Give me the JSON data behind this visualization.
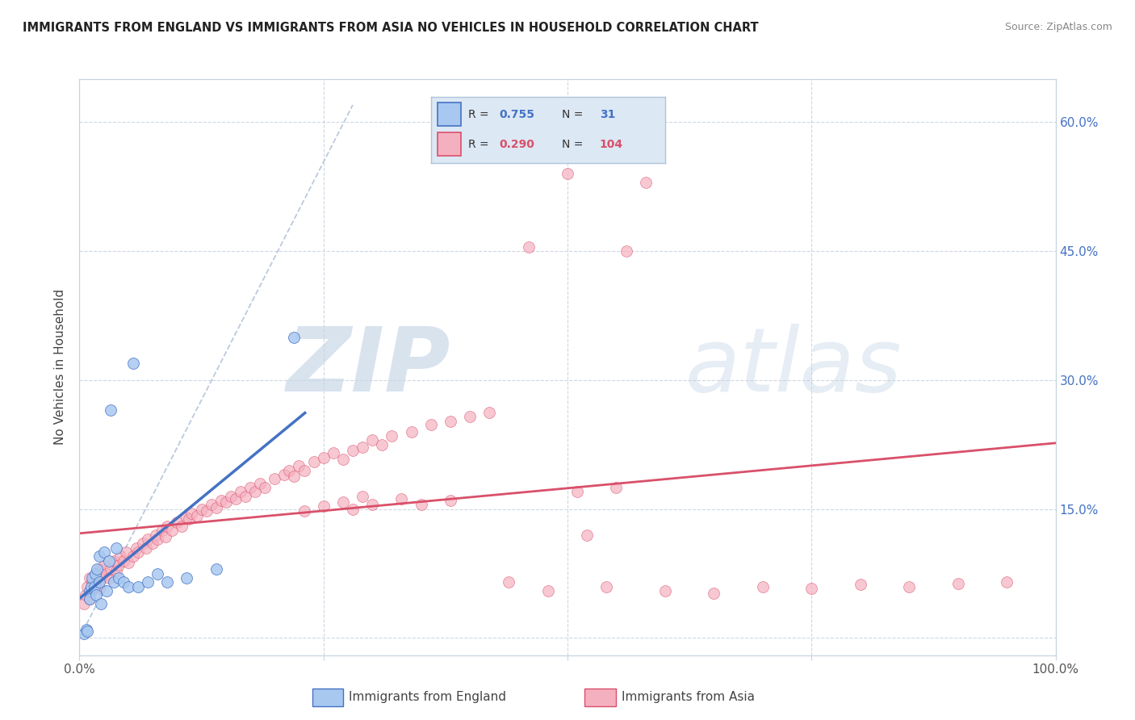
{
  "title": "IMMIGRANTS FROM ENGLAND VS IMMIGRANTS FROM ASIA NO VEHICLES IN HOUSEHOLD CORRELATION CHART",
  "source": "Source: ZipAtlas.com",
  "ylabel": "No Vehicles in Household",
  "legend1_label": "Immigrants from England",
  "legend2_label": "Immigrants from Asia",
  "R1": "0.755",
  "N1": "31",
  "R2": "0.290",
  "N2": "104",
  "color1": "#a8c8f0",
  "color2": "#f5b0c0",
  "line1_color": "#4472c4",
  "line2_color": "#d9506a",
  "ref_line_color": "#b0c0d8",
  "watermark": "ZIPatlas",
  "watermark_color": "#c8d8e8",
  "xlim": [
    0.0,
    1.0
  ],
  "ylim": [
    -0.02,
    0.65
  ],
  "yticks": [
    0.0,
    0.15,
    0.3,
    0.45,
    0.6
  ],
  "ytick_labels": [
    "",
    "15.0%",
    "30.0%",
    "45.0%",
    "60.0%"
  ],
  "grid_color": "#c8d4e0",
  "bg_color": "#ffffff",
  "box_color": "#b0c4d8",
  "legend_box_color": "#dce8f4",
  "england_x": [
    0.005,
    0.007,
    0.008,
    0.01,
    0.01,
    0.012,
    0.013,
    0.015,
    0.016,
    0.017,
    0.018,
    0.02,
    0.02,
    0.022,
    0.025,
    0.028,
    0.03,
    0.032,
    0.035,
    0.038,
    0.04,
    0.045,
    0.05,
    0.055,
    0.06,
    0.07,
    0.08,
    0.09,
    0.11,
    0.14,
    0.22
  ],
  "england_y": [
    0.005,
    0.01,
    0.008,
    0.055,
    0.045,
    0.06,
    0.07,
    0.06,
    0.075,
    0.05,
    0.08,
    0.065,
    0.095,
    0.04,
    0.1,
    0.055,
    0.09,
    0.265,
    0.065,
    0.105,
    0.07,
    0.065,
    0.06,
    0.32,
    0.06,
    0.065,
    0.075,
    0.065,
    0.07,
    0.08,
    0.35
  ],
  "asia_x": [
    0.005,
    0.006,
    0.008,
    0.01,
    0.01,
    0.012,
    0.013,
    0.015,
    0.016,
    0.018,
    0.02,
    0.02,
    0.022,
    0.025,
    0.028,
    0.03,
    0.032,
    0.035,
    0.038,
    0.04,
    0.042,
    0.045,
    0.048,
    0.05,
    0.055,
    0.058,
    0.06,
    0.065,
    0.068,
    0.07,
    0.075,
    0.078,
    0.08,
    0.085,
    0.088,
    0.09,
    0.095,
    0.1,
    0.105,
    0.11,
    0.112,
    0.115,
    0.12,
    0.125,
    0.13,
    0.135,
    0.14,
    0.145,
    0.15,
    0.155,
    0.16,
    0.165,
    0.17,
    0.175,
    0.18,
    0.185,
    0.19,
    0.2,
    0.21,
    0.215,
    0.22,
    0.225,
    0.23,
    0.24,
    0.25,
    0.26,
    0.27,
    0.28,
    0.29,
    0.3,
    0.31,
    0.32,
    0.34,
    0.36,
    0.38,
    0.4,
    0.42,
    0.44,
    0.46,
    0.48,
    0.5,
    0.52,
    0.54,
    0.56,
    0.58,
    0.6,
    0.65,
    0.7,
    0.75,
    0.8,
    0.85,
    0.9,
    0.95,
    0.51,
    0.55,
    0.35,
    0.38,
    0.28,
    0.3,
    0.33,
    0.23,
    0.25,
    0.27,
    0.29
  ],
  "asia_y": [
    0.04,
    0.05,
    0.06,
    0.045,
    0.07,
    0.055,
    0.065,
    0.06,
    0.075,
    0.065,
    0.058,
    0.08,
    0.07,
    0.085,
    0.075,
    0.07,
    0.08,
    0.09,
    0.078,
    0.085,
    0.095,
    0.09,
    0.1,
    0.088,
    0.095,
    0.105,
    0.1,
    0.11,
    0.105,
    0.115,
    0.11,
    0.12,
    0.115,
    0.125,
    0.118,
    0.13,
    0.125,
    0.135,
    0.13,
    0.14,
    0.138,
    0.145,
    0.142,
    0.15,
    0.148,
    0.155,
    0.152,
    0.16,
    0.158,
    0.165,
    0.162,
    0.17,
    0.165,
    0.175,
    0.17,
    0.18,
    0.175,
    0.185,
    0.19,
    0.195,
    0.188,
    0.2,
    0.195,
    0.205,
    0.21,
    0.215,
    0.208,
    0.218,
    0.222,
    0.23,
    0.225,
    0.235,
    0.24,
    0.248,
    0.252,
    0.258,
    0.262,
    0.065,
    0.455,
    0.055,
    0.54,
    0.12,
    0.06,
    0.45,
    0.53,
    0.055,
    0.052,
    0.06,
    0.058,
    0.062,
    0.06,
    0.063,
    0.065,
    0.17,
    0.175,
    0.155,
    0.16,
    0.15,
    0.155,
    0.162,
    0.148,
    0.153,
    0.158,
    0.165
  ]
}
